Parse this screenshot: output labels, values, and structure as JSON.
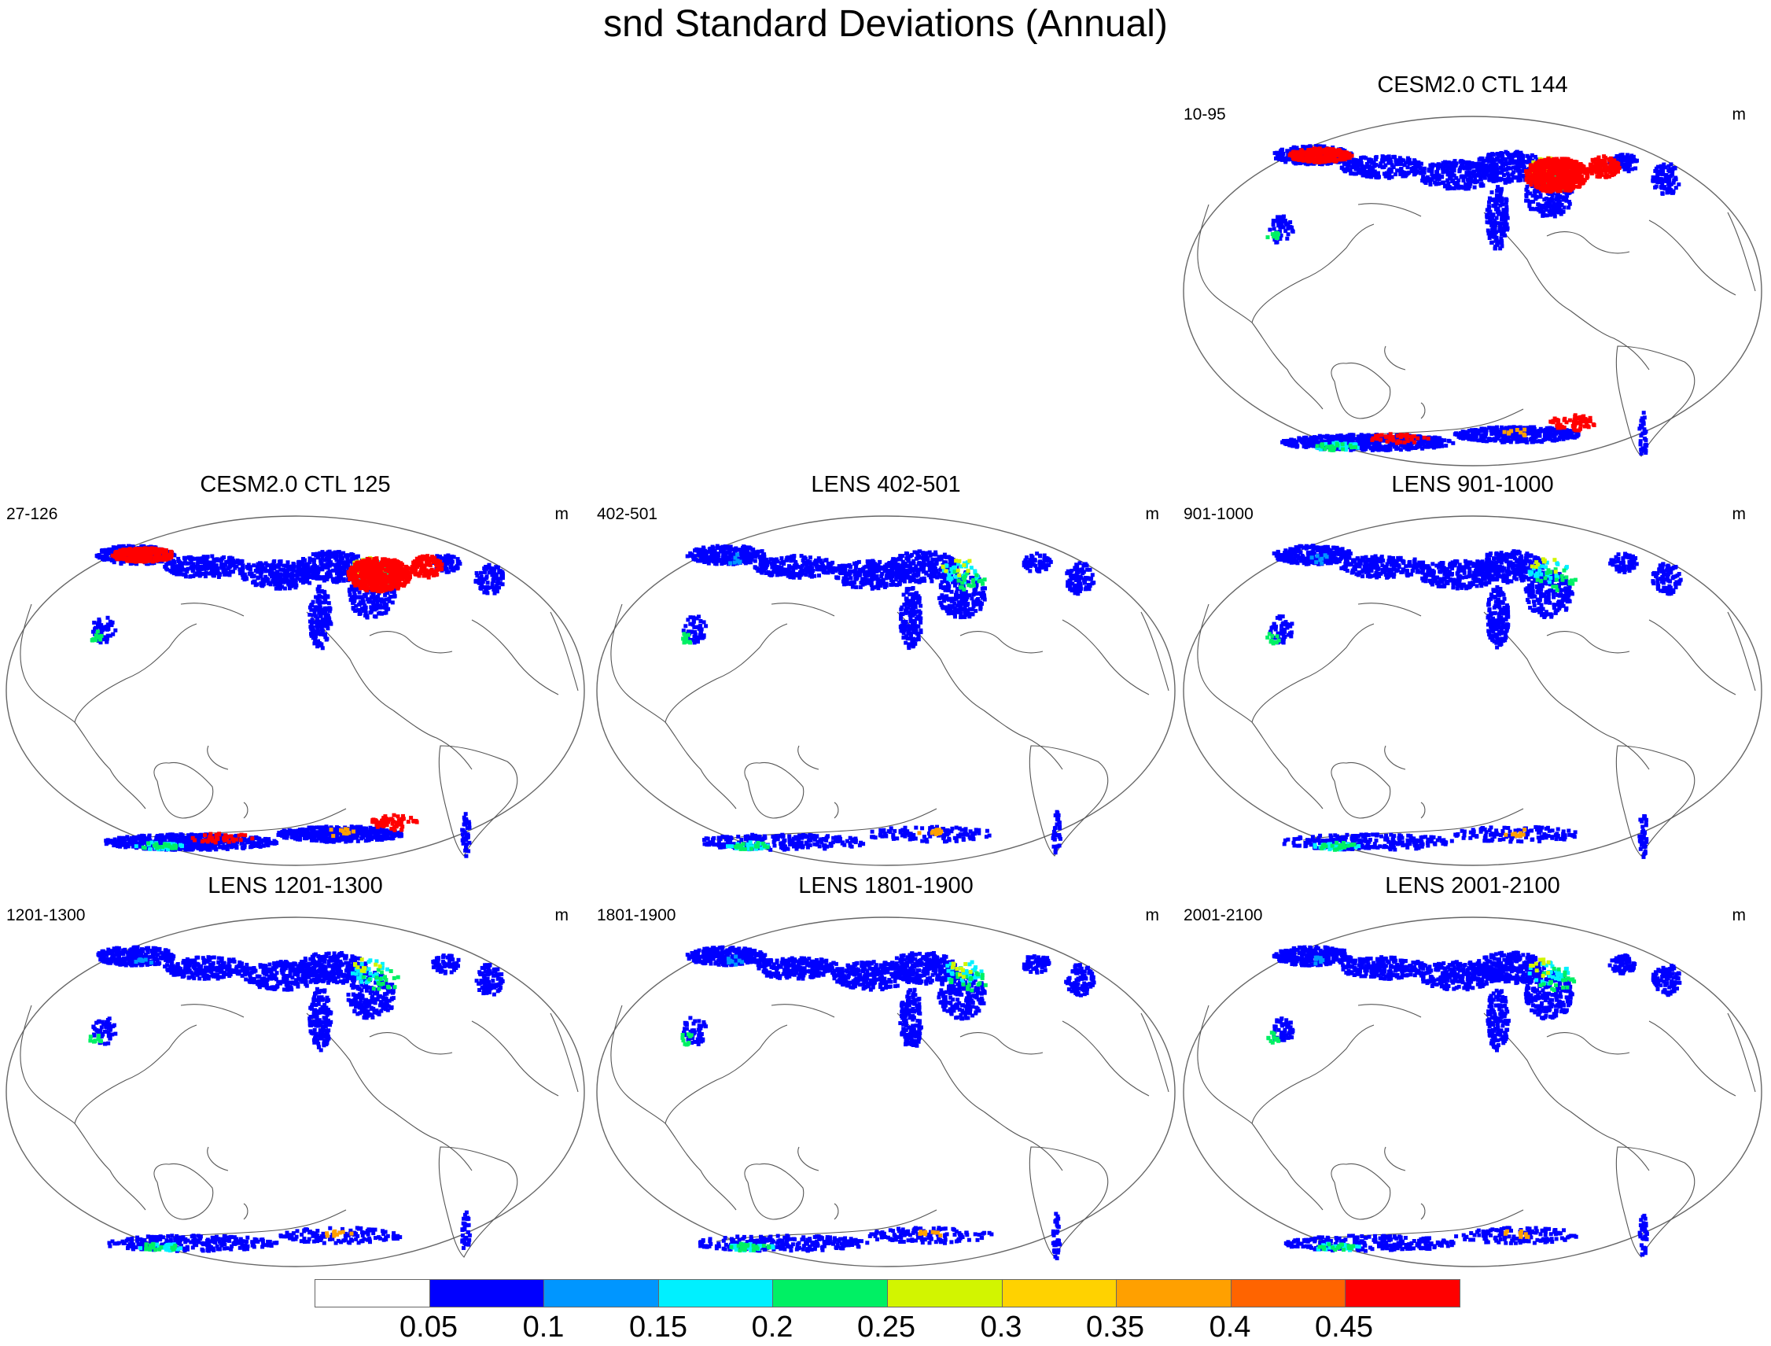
{
  "title": "snd Standard Deviations (Annual)",
  "panels": [
    {
      "title": "CESM2.0 CTL 144",
      "left": "10-95",
      "right": "m",
      "intensity": "high"
    },
    {
      "title": "CESM2.0 CTL 125",
      "left": "27-126",
      "right": "m",
      "intensity": "high"
    },
    {
      "title": "LENS 402-501",
      "left": "402-501",
      "right": "m",
      "intensity": "low"
    },
    {
      "title": "LENS 901-1000",
      "left": "901-1000",
      "right": "m",
      "intensity": "low"
    },
    {
      "title": "LENS 1201-1300",
      "left": "1201-1300",
      "right": "m",
      "intensity": "low"
    },
    {
      "title": "LENS 1801-1900",
      "left": "1801-1900",
      "right": "m",
      "intensity": "low"
    },
    {
      "title": "LENS 2001-2100",
      "left": "2001-2100",
      "right": "m",
      "intensity": "low"
    }
  ],
  "colorbar": {
    "labels": [
      "0.05",
      "0.1",
      "0.15",
      "0.2",
      "0.25",
      "0.3",
      "0.35",
      "0.4",
      "0.45"
    ],
    "colors": [
      "#ffffff",
      "#0000ff",
      "#0096ff",
      "#00f0ff",
      "#00f064",
      "#d2f500",
      "#ffd200",
      "#ffa000",
      "#ff6400",
      "#ff0000"
    ]
  }
}
